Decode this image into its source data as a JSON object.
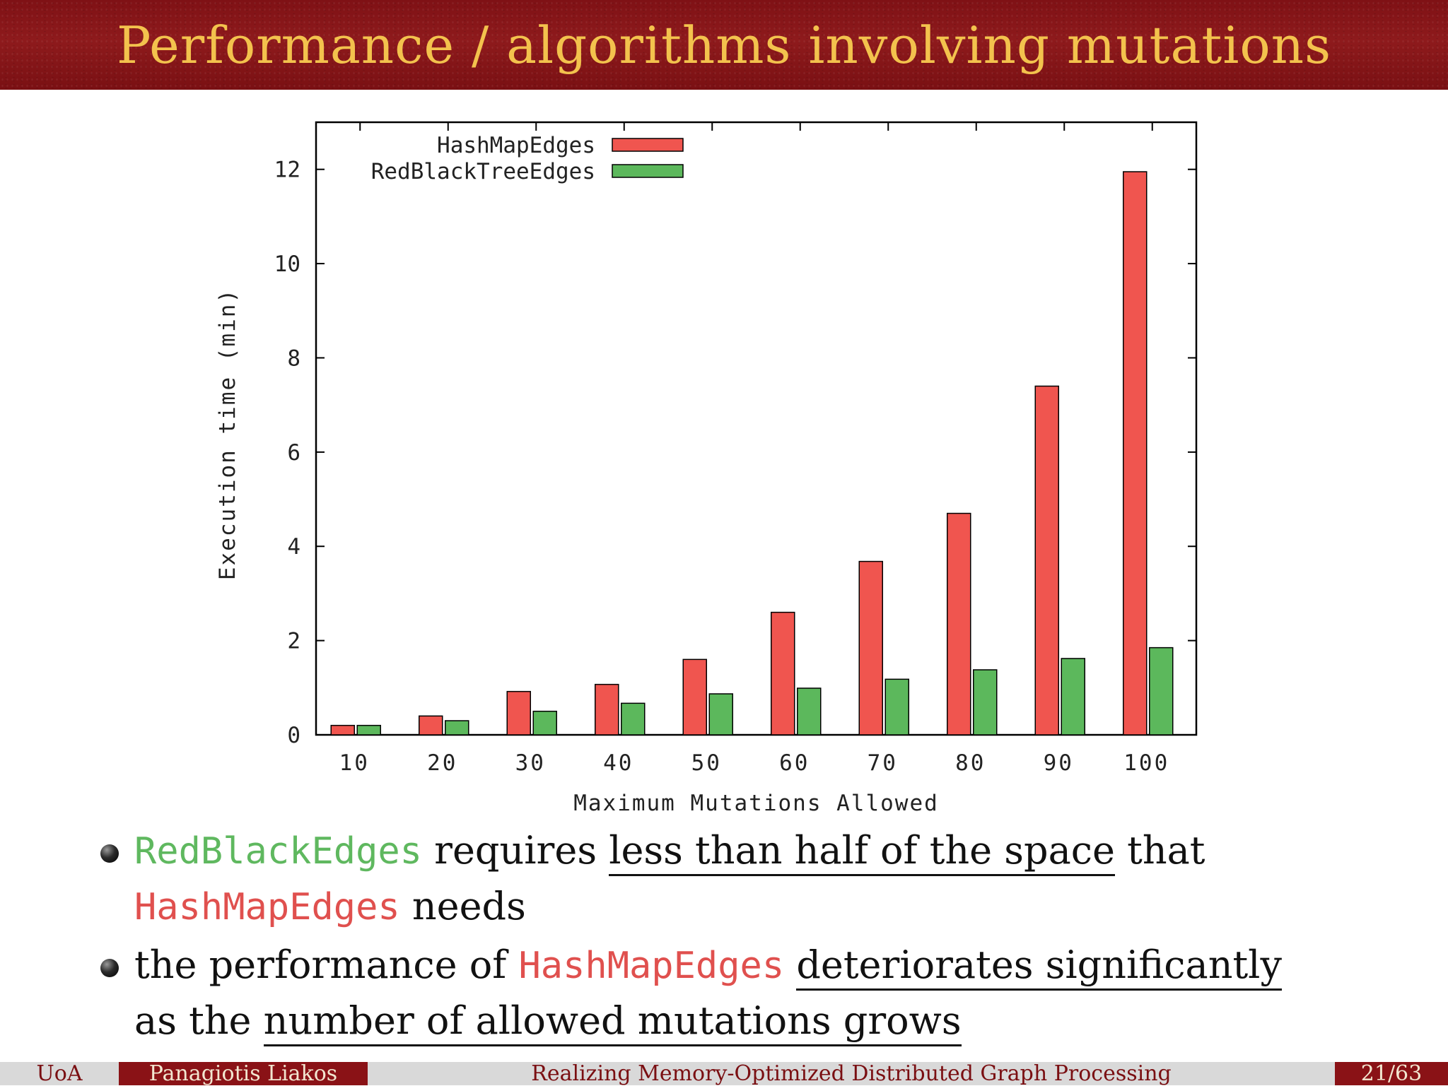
{
  "header": {
    "title": "Performance / algorithms involving mutations"
  },
  "chart_data": {
    "type": "bar",
    "title": "",
    "xlabel": "Maximum Mutations Allowed",
    "ylabel": "Execution time (min)",
    "categories": [
      "10",
      "20",
      "30",
      "40",
      "50",
      "60",
      "70",
      "80",
      "90",
      "100"
    ],
    "yticks": [
      "0",
      "2",
      "4",
      "6",
      "8",
      "10",
      "12"
    ],
    "ylim": [
      0,
      13
    ],
    "legend_position": "top-left",
    "series": [
      {
        "name": "HashMapEdges",
        "color": "#f0554f",
        "values": [
          0.2,
          0.4,
          0.92,
          1.07,
          1.6,
          2.6,
          3.68,
          4.7,
          7.4,
          11.95
        ]
      },
      {
        "name": "RedBlackTreeEdges",
        "color": "#5cb85c",
        "values": [
          0.2,
          0.3,
          0.5,
          0.67,
          0.87,
          0.99,
          1.18,
          1.38,
          1.62,
          1.85
        ]
      }
    ]
  },
  "bullets": {
    "b1": {
      "term1": "RedBlackEdges",
      "text1": " requires ",
      "underlined": "less than half of the space",
      "text2": " that",
      "term2": "HashMapEdges",
      "text3": " needs"
    },
    "b2": {
      "text1": "the performance of ",
      "term": "HashMapEdges",
      "underlined1": "deteriorates significantly",
      "text2": "as the ",
      "underlined2": "number of allowed mutations grows"
    }
  },
  "footer": {
    "institution": "UoA",
    "author": "Panagiotis Liakos",
    "talk_title": "Realizing Memory-Optimized Distributed Graph Processing",
    "page": "21/63"
  }
}
